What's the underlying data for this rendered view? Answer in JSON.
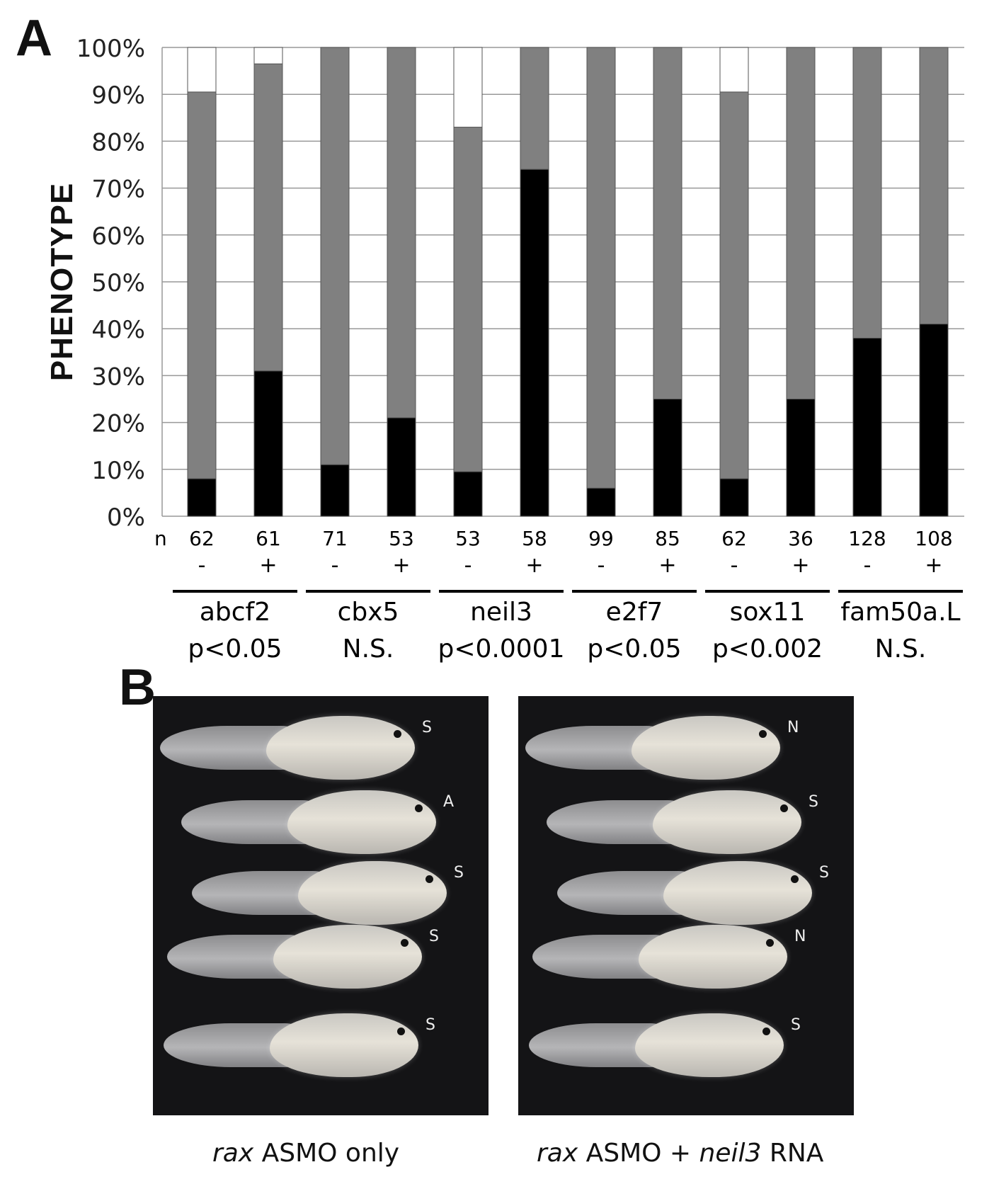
{
  "panel_a_label": "A",
  "panel_b_label": "B",
  "chart_data": {
    "type": "bar",
    "stacked": true,
    "ylabel": "PHENOTYPE",
    "ylim": [
      0,
      100
    ],
    "yticks": [
      "0%",
      "10%",
      "20%",
      "30%",
      "40%",
      "50%",
      "60%",
      "70%",
      "80%",
      "90%",
      "100%"
    ],
    "grid": true,
    "n_label": "n",
    "categories": [
      "abcf2 -",
      "abcf2 +",
      "cbx5 -",
      "cbx5 +",
      "neil3 -",
      "neil3 +",
      "e2f7 -",
      "e2f7 +",
      "sox11 -",
      "sox11 +",
      "fam50a.L -",
      "fam50a.L +"
    ],
    "n": [
      "62",
      "61",
      "71",
      "53",
      "53",
      "58",
      "99",
      "85",
      "62",
      "36",
      "128",
      "108"
    ],
    "treatment": [
      "-",
      "+",
      "-",
      "+",
      "-",
      "+",
      "-",
      "+",
      "-",
      "+",
      "-",
      "+"
    ],
    "series": [
      {
        "name": "black",
        "color": "#000000",
        "values": [
          8,
          31,
          11,
          21,
          9.5,
          74,
          6,
          25,
          8,
          25,
          38,
          41
        ]
      },
      {
        "name": "gray",
        "color": "#808080",
        "values": [
          82.5,
          65.5,
          89,
          79,
          73.5,
          26,
          94,
          75,
          82.5,
          75,
          62,
          59
        ]
      },
      {
        "name": "white",
        "color": "#ffffff",
        "values": [
          9.5,
          3.5,
          0,
          0,
          17,
          0,
          0,
          0,
          9.5,
          0,
          0,
          0
        ]
      }
    ],
    "groups": [
      {
        "gene": "abcf2",
        "p": "p<0.05"
      },
      {
        "gene": "cbx5",
        "p": "N.S."
      },
      {
        "gene": "neil3",
        "p": "p<0.0001"
      },
      {
        "gene": "e2f7",
        "p": "p<0.05"
      },
      {
        "gene": "sox11",
        "p": "p<0.002"
      },
      {
        "gene": "fam50a.L",
        "p": "N.S."
      }
    ]
  },
  "photos": {
    "left": {
      "caption_italic": "rax",
      "caption_rest": " ASMO only",
      "labels": [
        "S",
        "A",
        "S",
        "S",
        "S"
      ]
    },
    "right": {
      "caption_italic": "rax",
      "caption_mid": " ASMO + ",
      "caption_italic2": "neil3",
      "caption_rest": " RNA",
      "labels": [
        "N",
        "S",
        "S",
        "N",
        "S"
      ]
    }
  }
}
